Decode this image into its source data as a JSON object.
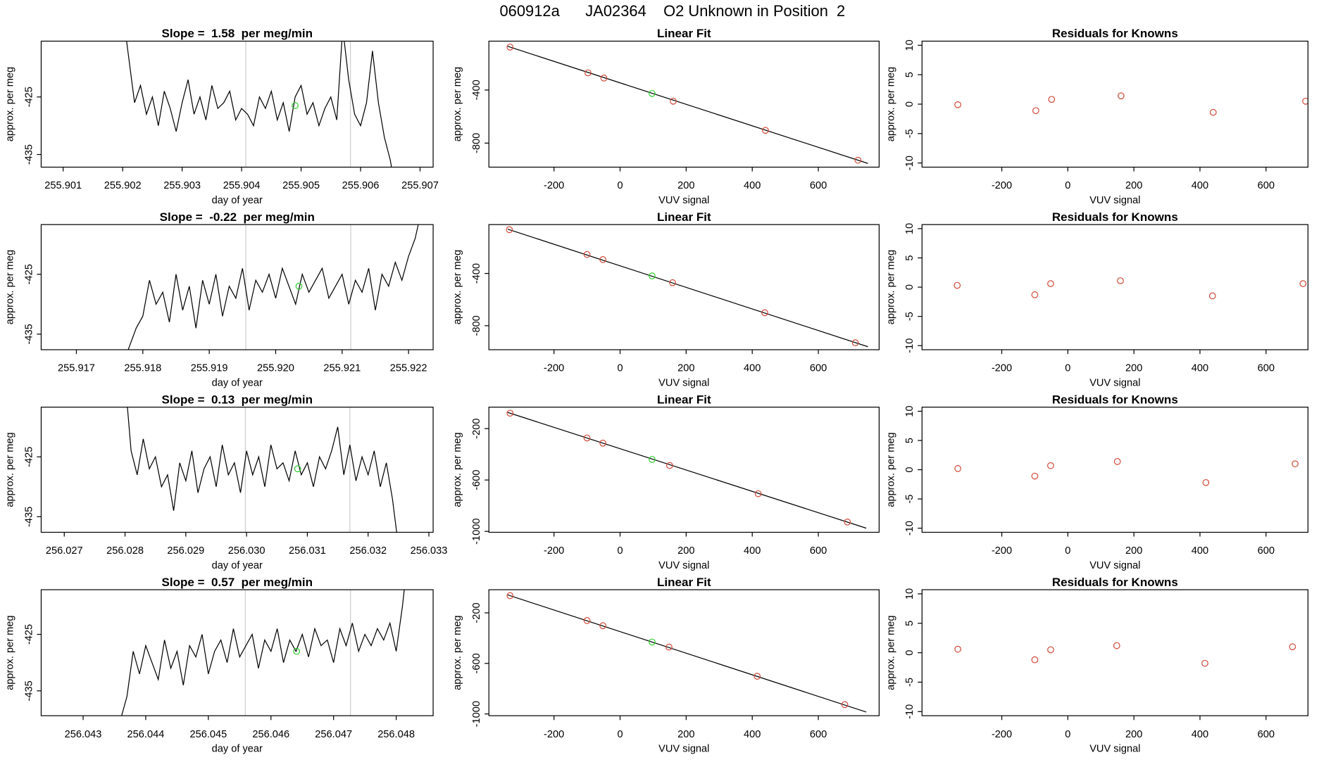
{
  "title": "060912a      JA02364    O2 Unknown in Position  2",
  "chart_data": [
    {
      "type": "line",
      "title": "Slope =  1.58  per meg/min",
      "xlabel": "day of year",
      "ylabel": "approx. per meg",
      "xlim": [
        255.90063,
        255.90722
      ],
      "xticks": [
        255.901,
        255.902,
        255.903,
        255.904,
        255.905,
        255.906,
        255.907
      ],
      "ylim": [
        -437.2,
        -415.3
      ],
      "yticks": [
        -435,
        -425
      ],
      "vlines": [
        255.90407,
        255.90583
      ],
      "vline_color": "#cccccc",
      "series": [
        {
          "style": "line",
          "color": "#000000",
          "x": [
            255.902,
            255.9021,
            255.9022,
            255.9023,
            255.9024,
            255.9025,
            255.9026,
            255.9027,
            255.9028,
            255.9029,
            255.903,
            255.9031,
            255.9032,
            255.9033,
            255.9034,
            255.9035,
            255.9036,
            255.9037,
            255.9038,
            255.9039,
            255.904,
            255.9041,
            255.9042,
            255.9043,
            255.9044,
            255.9045,
            255.9046,
            255.9047,
            255.9048,
            255.9049,
            255.905,
            255.9051,
            255.9052,
            255.9053,
            255.9054,
            255.9055,
            255.9056,
            255.9057,
            255.9058,
            255.9059,
            255.906,
            255.9061,
            255.9062,
            255.9063,
            255.9064,
            255.9065,
            255.9066
          ],
          "values": [
            -410,
            -418,
            -426,
            -423,
            -428,
            -425,
            -430,
            -424,
            -427,
            -431,
            -426,
            -422,
            -428,
            -425,
            -429,
            -423,
            -427,
            -426,
            -424,
            -429,
            -427,
            -428,
            -430,
            -425,
            -427,
            -424,
            -429,
            -426,
            -431,
            -425,
            -423,
            -428,
            -426,
            -430,
            -427,
            -425,
            -429,
            -413,
            -422,
            -428,
            -430,
            -426,
            -417,
            -426,
            -432,
            -436,
            -442
          ]
        },
        {
          "style": "points",
          "color": "#33cc33",
          "x": [
            255.9049
          ],
          "values": [
            -426.5
          ]
        }
      ]
    },
    {
      "type": "scatter",
      "title": "Linear Fit",
      "xlabel": "VUV signal",
      "ylabel": "approx. per meg",
      "xlim": [
        -397,
        784
      ],
      "xticks": [
        -200,
        0,
        200,
        400,
        600
      ],
      "ylim": [
        -981,
        -32
      ],
      "yticks": [
        -800,
        -400
      ],
      "fit": {
        "color": "#000000",
        "x": [
          -340,
          750
        ],
        "values": [
          -71,
          -953
        ]
      },
      "series": [
        {
          "style": "points",
          "color": "#d04a3a",
          "x": [
            -333,
            -97,
            -49,
            161,
            440,
            720
          ],
          "values": [
            -77,
            -271,
            -310,
            -484,
            -704,
            -929
          ]
        },
        {
          "style": "points",
          "color": "#33cc33",
          "x": [
            97
          ],
          "values": [
            -426
          ]
        }
      ]
    },
    {
      "type": "scatter",
      "title": "Residuals for Knowns",
      "xlabel": "VUV signal",
      "ylabel": "approx. per meg",
      "xlim": [
        -441.5,
        727
      ],
      "xticks": [
        -200,
        0,
        200,
        400,
        600
      ],
      "ylim": [
        -10.7,
        10.7
      ],
      "yticks": [
        -10,
        -5,
        0,
        5,
        10
      ],
      "series": [
        {
          "style": "points",
          "color": "#d04a3a",
          "x": [
            -333,
            -97,
            -49,
            161,
            440,
            720
          ],
          "values": [
            -0.1,
            -1.1,
            0.8,
            1.4,
            -1.4,
            0.5
          ]
        }
      ]
    },
    {
      "type": "line",
      "title": "Slope =  -0.22  per meg/min",
      "xlabel": "day of year",
      "ylabel": "approx. per meg",
      "xlim": [
        255.91647,
        255.92237
      ],
      "xticks": [
        255.917,
        255.918,
        255.919,
        {
          "value": 255.92,
          "label": "255.920"
        },
        255.921,
        255.922
      ],
      "ylim": [
        -437.6,
        -416.7
      ],
      "yticks": [
        -435,
        -425
      ],
      "vlines": [
        255.91955,
        255.92113
      ],
      "vline_color": "#cccccc",
      "series": [
        {
          "style": "line",
          "color": "#000000",
          "x": [
            255.9177,
            255.9178,
            255.9179,
            255.918,
            255.9181,
            255.9182,
            255.9183,
            255.9184,
            255.9185,
            255.9186,
            255.9187,
            255.9188,
            255.9189,
            255.919,
            255.9191,
            255.9192,
            255.9193,
            255.9194,
            255.9195,
            255.9196,
            255.9197,
            255.9198,
            255.9199,
            255.92,
            255.9201,
            255.9202,
            255.9203,
            255.9204,
            255.9205,
            255.9206,
            255.9207,
            255.9208,
            255.9209,
            255.921,
            255.9211,
            255.9212,
            255.9213,
            255.9214,
            255.9215,
            255.9216,
            255.9217,
            255.9218,
            255.9219,
            255.922,
            255.9221,
            255.9222
          ],
          "values": [
            -440,
            -437,
            -434,
            -432,
            -426,
            -430,
            -428,
            -433,
            -425,
            -431,
            -427,
            -434,
            -426,
            -430,
            -425,
            -432,
            -427,
            -429,
            -424,
            -431,
            -426,
            -428,
            -425,
            -429,
            -424,
            -427,
            -430,
            -425,
            -428,
            -426,
            -424,
            -429,
            -427,
            -425,
            -430,
            -426,
            -428,
            -424,
            -431,
            -425,
            -427,
            -423,
            -426,
            -422,
            -419,
            -414
          ]
        },
        {
          "style": "points",
          "color": "#33cc33",
          "x": [
            255.92035
          ],
          "values": [
            -427
          ]
        }
      ]
    },
    {
      "type": "scatter",
      "title": "Linear Fit",
      "xlabel": "VUV signal",
      "ylabel": "approx. per meg",
      "xlim": [
        -397,
        784
      ],
      "xticks": [
        -200,
        0,
        200,
        400,
        600
      ],
      "ylim": [
        -984,
        -26
      ],
      "yticks": [
        -800,
        -400
      ],
      "fit": {
        "color": "#000000",
        "x": [
          -340,
          750
        ],
        "values": [
          -61,
          -961
        ]
      },
      "series": [
        {
          "style": "points",
          "color": "#d04a3a",
          "x": [
            -335,
            -100,
            -52,
            159,
            438,
            712
          ],
          "values": [
            -65,
            -255,
            -294,
            -471,
            -701,
            -931
          ]
        },
        {
          "style": "points",
          "color": "#33cc33",
          "x": [
            97
          ],
          "values": [
            -419
          ]
        }
      ]
    },
    {
      "type": "scatter",
      "title": "Residuals for Knowns",
      "xlabel": "VUV signal",
      "ylabel": "approx. per meg",
      "xlim": [
        -441.5,
        727
      ],
      "xticks": [
        -200,
        0,
        200,
        400,
        600
      ],
      "ylim": [
        -10.7,
        10.7
      ],
      "yticks": [
        -10,
        -5,
        0,
        5,
        10
      ],
      "series": [
        {
          "style": "points",
          "color": "#d04a3a",
          "x": [
            -335,
            -100,
            -52,
            159,
            438,
            712
          ],
          "values": [
            0.3,
            -1.3,
            0.6,
            1.1,
            -1.5,
            0.6
          ]
        }
      ]
    },
    {
      "type": "line",
      "title": "Slope =  0.13  per meg/min",
      "xlabel": "day of year",
      "ylabel": "approx. per meg",
      "xlim": [
        256.02662,
        256.03307
      ],
      "xticks": [
        256.027,
        256.028,
        256.029,
        {
          "value": 256.03,
          "label": "256.030"
        },
        256.031,
        256.032,
        256.033
      ],
      "ylim": [
        -437.6,
        -416.7
      ],
      "yticks": [
        -435,
        -425
      ],
      "vlines": [
        256.02998,
        256.0317
      ],
      "vline_color": "#cccccc",
      "series": [
        {
          "style": "line",
          "color": "#000000",
          "x": [
            256.028,
            256.0281,
            256.0282,
            256.0283,
            256.0284,
            256.0285,
            256.0286,
            256.0287,
            256.0288,
            256.0289,
            256.029,
            256.0291,
            256.0292,
            256.0293,
            256.0294,
            256.0295,
            256.0296,
            256.0297,
            256.0298,
            256.0299,
            256.03,
            256.0301,
            256.0302,
            256.0303,
            256.0304,
            256.0305,
            256.0306,
            256.0307,
            256.0308,
            256.0309,
            256.031,
            256.0311,
            256.0312,
            256.0313,
            256.0314,
            256.0315,
            256.0316,
            256.0317,
            256.0318,
            256.0319,
            256.032,
            256.0321,
            256.0322,
            256.0323,
            256.0324,
            256.0325
          ],
          "values": [
            -412,
            -424,
            -428,
            -422,
            -427,
            -425,
            -430,
            -428,
            -434,
            -426,
            -429,
            -424,
            -431,
            -427,
            -425,
            -430,
            -423,
            -428,
            -426,
            -431,
            -424,
            -428,
            -425,
            -430,
            -423,
            -427,
            -426,
            -429,
            -424,
            -428,
            -426,
            -430,
            -425,
            -427,
            -424,
            -420,
            -428,
            -423,
            -429,
            -425,
            -428,
            -424,
            -430,
            -426,
            -432,
            -440
          ]
        },
        {
          "style": "points",
          "color": "#33cc33",
          "x": [
            256.03084
          ],
          "values": [
            -427
          ]
        }
      ]
    },
    {
      "type": "scatter",
      "title": "Linear Fit",
      "xlabel": "VUV signal",
      "ylabel": "approx. per meg",
      "xlim": [
        -397,
        784
      ],
      "xticks": [
        -200,
        0,
        200,
        400,
        600
      ],
      "ylim": [
        -1007,
        -33
      ],
      "yticks": [
        -1000,
        -600,
        -200
      ],
      "fit": {
        "color": "#000000",
        "x": [
          -340,
          745
        ],
        "values": [
          -74,
          -975
        ]
      },
      "series": [
        {
          "style": "points",
          "color": "#d04a3a",
          "x": [
            -333,
            -100,
            -52,
            150,
            418,
            688
          ],
          "values": [
            -80,
            -273,
            -313,
            -487,
            -707,
            -927
          ]
        },
        {
          "style": "points",
          "color": "#33cc33",
          "x": [
            97
          ],
          "values": [
            -440
          ]
        }
      ]
    },
    {
      "type": "scatter",
      "title": "Residuals for Knowns",
      "xlabel": "VUV signal",
      "ylabel": "approx. per meg",
      "xlim": [
        -441.5,
        727
      ],
      "xticks": [
        -200,
        0,
        200,
        400,
        600
      ],
      "ylim": [
        -10.7,
        10.7
      ],
      "yticks": [
        -10,
        -5,
        0,
        5,
        10
      ],
      "series": [
        {
          "style": "points",
          "color": "#d04a3a",
          "x": [
            -333,
            -100,
            -52,
            150,
            418,
            688
          ],
          "values": [
            0.2,
            -1.1,
            0.7,
            1.4,
            -2.2,
            1.0
          ]
        }
      ]
    },
    {
      "type": "line",
      "title": "Slope =  0.57  per meg/min",
      "xlabel": "day of year",
      "ylabel": "approx. per meg",
      "xlim": [
        256.04233,
        256.04859
      ],
      "xticks": [
        256.043,
        256.044,
        256.045,
        256.046,
        256.047,
        256.048
      ],
      "ylim": [
        -439.4,
        -417.1
      ],
      "yticks": [
        -435,
        -425
      ],
      "vlines": [
        256.04559,
        256.04727
      ],
      "vline_color": "#cccccc",
      "series": [
        {
          "style": "line",
          "color": "#000000",
          "x": [
            256.0436,
            256.0437,
            256.0438,
            256.0439,
            256.044,
            256.0441,
            256.0442,
            256.0443,
            256.0444,
            256.0445,
            256.0446,
            256.0447,
            256.0448,
            256.0449,
            256.045,
            256.0451,
            256.0452,
            256.0453,
            256.0454,
            256.0455,
            256.0456,
            256.0457,
            256.0458,
            256.0459,
            256.046,
            256.0461,
            256.0462,
            256.0463,
            256.0464,
            256.0465,
            256.0466,
            256.0467,
            256.0468,
            256.0469,
            256.047,
            256.0471,
            256.0472,
            256.0473,
            256.0474,
            256.0475,
            256.0476,
            256.0477,
            256.0478,
            256.0479,
            256.048,
            256.0481,
            256.0482
          ],
          "values": [
            -440,
            -436,
            -428,
            -432,
            -427,
            -430,
            -433,
            -426,
            -431,
            -428,
            -434,
            -427,
            -429,
            -425,
            -432,
            -428,
            -426,
            -430,
            -424,
            -429,
            -427,
            -425,
            -431,
            -426,
            -428,
            -424,
            -430,
            -426,
            -428,
            -425,
            -429,
            -424,
            -427,
            -426,
            -430,
            -424,
            -427,
            -423,
            -428,
            -425,
            -427,
            -424,
            -426,
            -423,
            -428,
            -420,
            -410
          ]
        },
        {
          "style": "points",
          "color": "#33cc33",
          "x": [
            256.04641
          ],
          "values": [
            -428
          ]
        }
      ]
    },
    {
      "type": "scatter",
      "title": "Linear Fit",
      "xlabel": "VUV signal",
      "ylabel": "approx. per meg",
      "xlim": [
        -397,
        784
      ],
      "xticks": [
        -200,
        0,
        200,
        400,
        600
      ],
      "ylim": [
        -1014,
        -17
      ],
      "yticks": [
        -1000,
        -600,
        -200
      ],
      "fit": {
        "color": "#000000",
        "x": [
          -340,
          745
        ],
        "values": [
          -58,
          -985
        ]
      },
      "series": [
        {
          "style": "points",
          "color": "#d04a3a",
          "x": [
            -333,
            -100,
            -52,
            148,
            415,
            680
          ],
          "values": [
            -64,
            -261,
            -302,
            -471,
            -702,
            -926
          ]
        },
        {
          "style": "points",
          "color": "#33cc33",
          "x": [
            97
          ],
          "values": [
            -431
          ]
        }
      ]
    },
    {
      "type": "scatter",
      "title": "Residuals for Knowns",
      "xlabel": "VUV signal",
      "ylabel": "approx. per meg",
      "xlim": [
        -441.5,
        727
      ],
      "xticks": [
        -200,
        0,
        200,
        400,
        600
      ],
      "ylim": [
        -10.7,
        10.7
      ],
      "yticks": [
        -10,
        -5,
        0,
        5,
        10
      ],
      "series": [
        {
          "style": "points",
          "color": "#d04a3a",
          "x": [
            -333,
            -100,
            -52,
            148,
            415,
            680
          ],
          "values": [
            0.6,
            -1.2,
            0.5,
            1.2,
            -1.8,
            1.0
          ]
        }
      ]
    }
  ]
}
